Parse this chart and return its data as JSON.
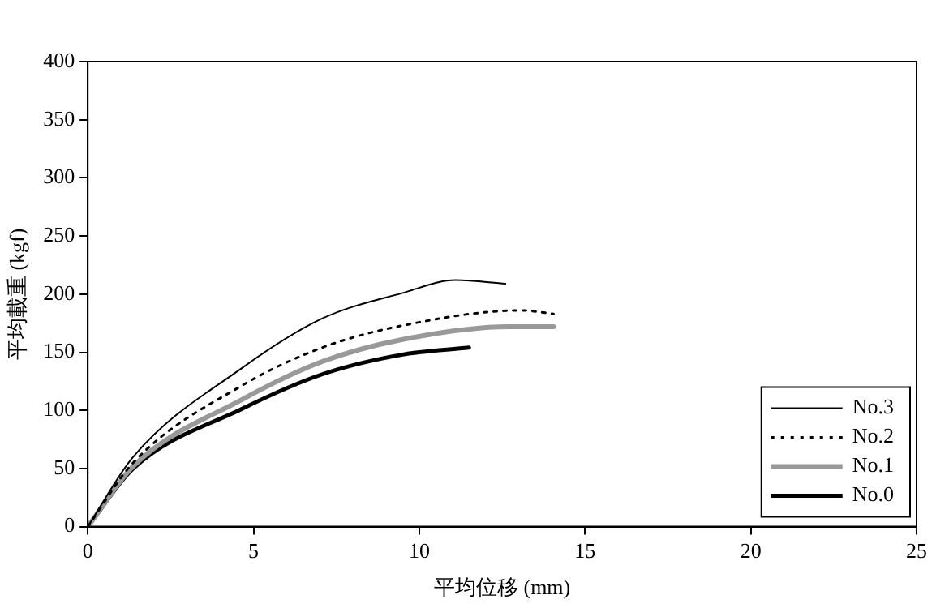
{
  "chart_data": {
    "type": "line",
    "xlabel": "平均位移 (mm)",
    "ylabel": "平均載重 (kgf)",
    "xlim": [
      0,
      25
    ],
    "xticks": [
      0,
      5,
      10,
      15,
      20,
      25
    ],
    "ylim": [
      0,
      400
    ],
    "yticks": [
      0,
      50,
      100,
      150,
      200,
      250,
      300,
      350,
      400
    ],
    "grid": false,
    "legend": "bottom right",
    "marker": "none",
    "series": [
      {
        "name": "No.3",
        "color": "#000000",
        "line_style": "solid",
        "x": [
          0,
          1.37,
          4.63,
          7.07,
          9.5,
          11.1,
          12.6
        ],
        "values": [
          0,
          60,
          136,
          179,
          201,
          212,
          209
        ]
      },
      {
        "name": "No.2",
        "color": "#000000",
        "line_style": "dotted",
        "x": [
          0,
          1.37,
          4.63,
          7.07,
          9.5,
          13.1,
          14.05
        ],
        "values": [
          0,
          55,
          121,
          154,
          173,
          186,
          183
        ]
      },
      {
        "name": "No.1",
        "color": "#999999",
        "line_style": "solid",
        "x": [
          0,
          1.37,
          4.63,
          7.07,
          9.5,
          12.7,
          14.05
        ],
        "values": [
          0,
          52,
          109,
          142,
          161,
          172,
          172
        ]
      },
      {
        "name": "No.0",
        "color": "#000000",
        "line_style": "solid",
        "x": [
          0,
          1.37,
          4.63,
          7.07,
          9.5,
          11.5
        ],
        "values": [
          0,
          50,
          101,
          131,
          148,
          154
        ]
      }
    ]
  }
}
